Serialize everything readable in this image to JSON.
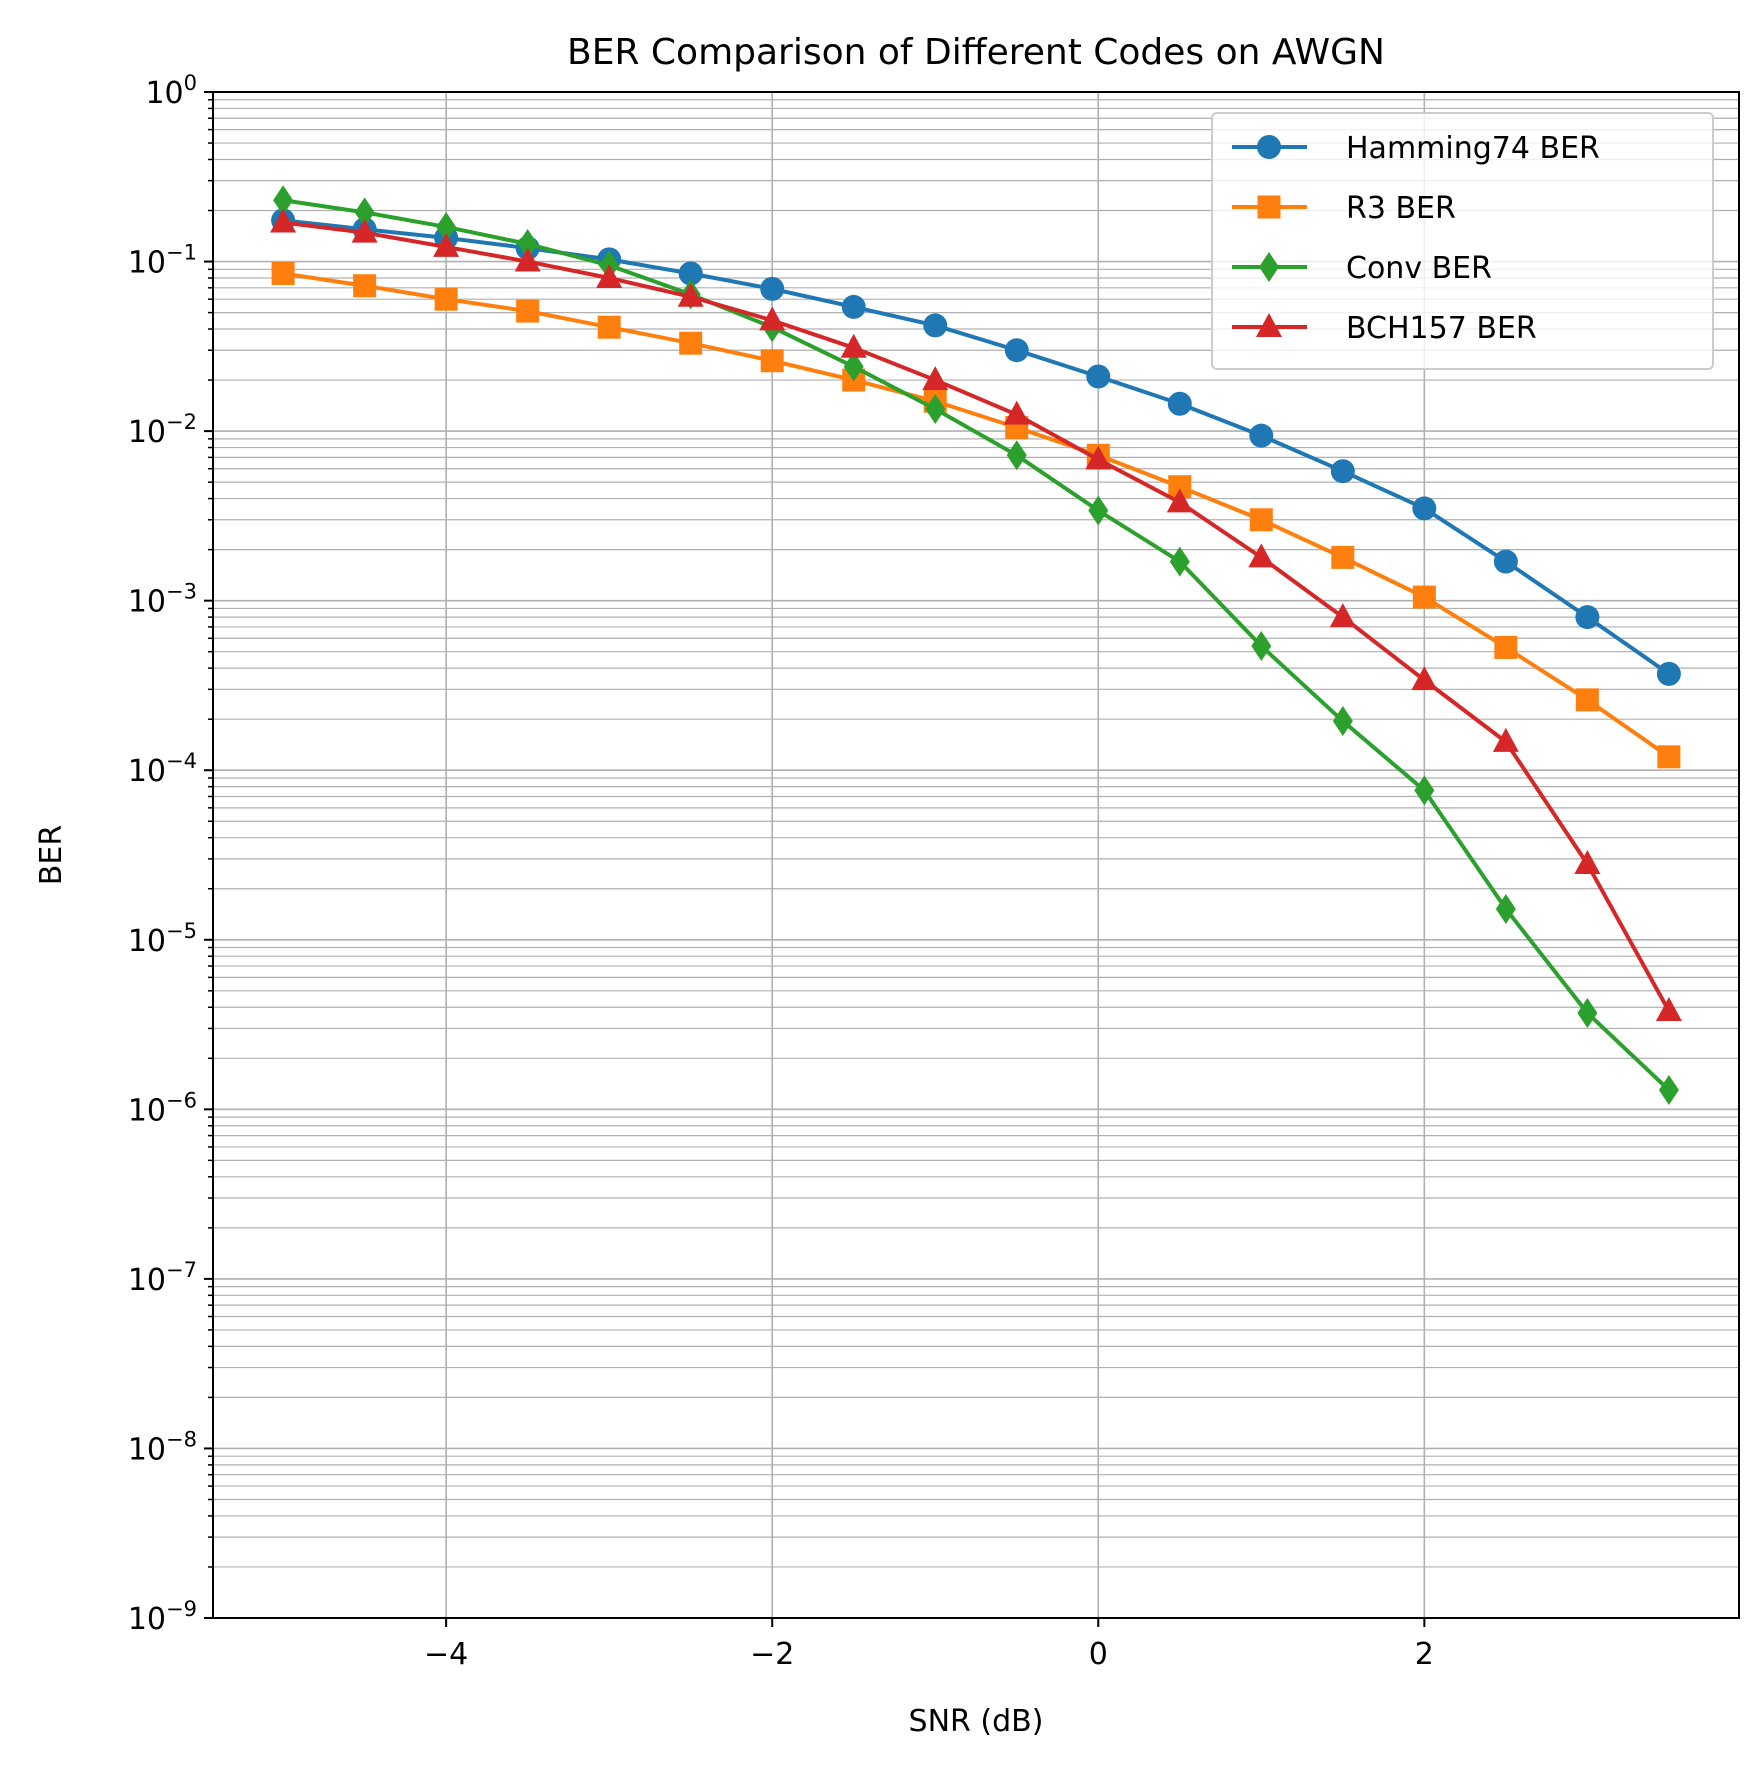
{
  "chart_data": {
    "type": "line",
    "title": "BER Comparison of Different Codes on AWGN",
    "xlabel": "SNR (dB)",
    "ylabel": "BER",
    "xlim": [
      -5.43,
      3.93
    ],
    "ylim": [
      1e-09,
      1
    ],
    "yscale": "log",
    "x_ticks": [
      -4,
      -2,
      0,
      2
    ],
    "x_tick_labels": [
      "−4",
      "−2",
      "0",
      "2"
    ],
    "y_ticks": [
      {
        "value": 1,
        "base": "10",
        "exp": "0"
      },
      {
        "value": 0.1,
        "base": "10",
        "exp": "−1"
      },
      {
        "value": 0.01,
        "base": "10",
        "exp": "−2"
      },
      {
        "value": 0.001,
        "base": "10",
        "exp": "−3"
      },
      {
        "value": 0.0001,
        "base": "10",
        "exp": "−4"
      },
      {
        "value": 1e-05,
        "base": "10",
        "exp": "−5"
      },
      {
        "value": 1e-06,
        "base": "10",
        "exp": "−6"
      },
      {
        "value": 1e-07,
        "base": "10",
        "exp": "−7"
      },
      {
        "value": 1e-08,
        "base": "10",
        "exp": "−8"
      },
      {
        "value": 1e-09,
        "base": "10",
        "exp": "−9"
      }
    ],
    "grid": true,
    "grid_minor_y": true,
    "legend_position": "top-right",
    "x": [
      -5,
      -4.5,
      -4,
      -3.5,
      -3,
      -2.5,
      -2,
      -1.5,
      -1,
      -0.5,
      0,
      0.5,
      1,
      1.5,
      2,
      2.5,
      3,
      3.5
    ],
    "series": [
      {
        "name": "Hamming74 BER",
        "color": "#1f77b4",
        "marker": "circle",
        "values": [
          0.175,
          0.155,
          0.138,
          0.12,
          0.103,
          0.085,
          0.069,
          0.054,
          0.042,
          0.03,
          0.021,
          0.0145,
          0.0094,
          0.0058,
          0.0035,
          0.0017,
          0.0008,
          0.00037
        ]
      },
      {
        "name": "R3 BER",
        "color": "#ff7f0e",
        "marker": "square",
        "values": [
          0.085,
          0.072,
          0.06,
          0.051,
          0.041,
          0.033,
          0.026,
          0.02,
          0.015,
          0.0105,
          0.0072,
          0.0047,
          0.003,
          0.0018,
          0.00105,
          0.00053,
          0.00026,
          0.00012
        ]
      },
      {
        "name": "Conv BER",
        "color": "#2ca02c",
        "marker": "thin_diamond",
        "values": [
          0.23,
          0.195,
          0.16,
          0.127,
          0.095,
          0.064,
          0.041,
          0.024,
          0.0135,
          0.0072,
          0.0034,
          0.0017,
          0.00054,
          0.000195,
          7.6e-05,
          1.52e-05,
          3.7e-06,
          1.3e-06
        ]
      },
      {
        "name": "BCH157 BER",
        "color": "#d62728",
        "marker": "triangle",
        "values": [
          0.17,
          0.148,
          0.122,
          0.1,
          0.08,
          0.062,
          0.045,
          0.031,
          0.02,
          0.0125,
          0.0068,
          0.0038,
          0.0018,
          0.0008,
          0.00034,
          0.000147,
          2.8e-05,
          3.8e-06
        ]
      }
    ]
  }
}
